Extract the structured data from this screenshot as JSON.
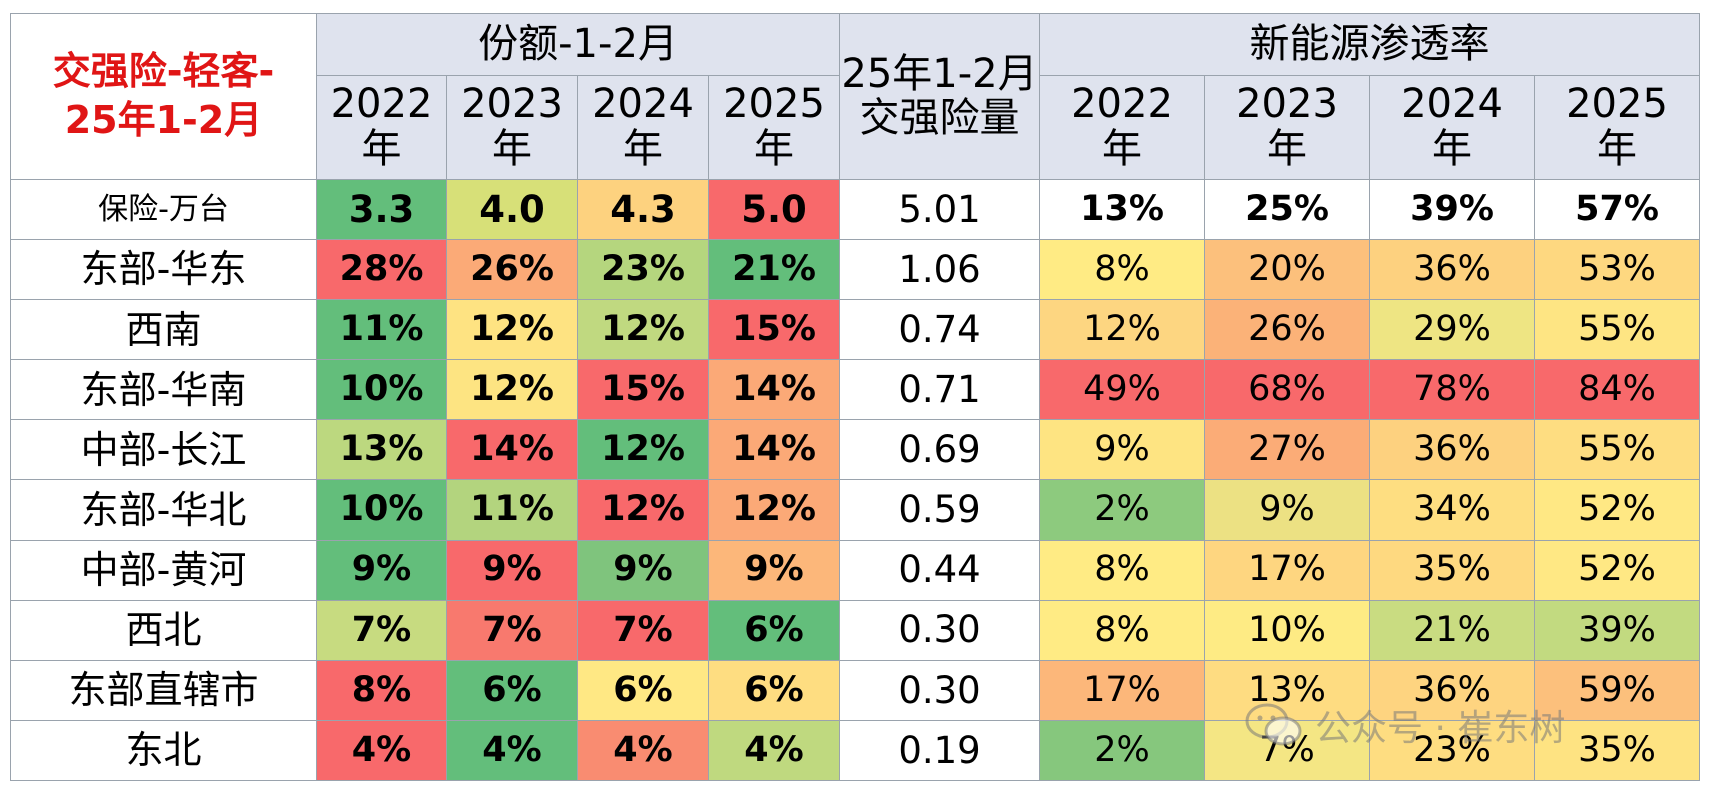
{
  "chart_data": {
    "type": "table",
    "title": "交强险-轻客-25年1-2月",
    "title_lines": [
      "交强险-轻客-",
      "25年1-2月"
    ],
    "groups": {
      "share": "份额-1-2月",
      "volume": [
        "25年1-2月",
        "交强险量"
      ],
      "penetration": "新能源渗透率"
    },
    "years": [
      {
        "num": "2022",
        "unit": "年"
      },
      {
        "num": "2023",
        "unit": "年"
      },
      {
        "num": "2024",
        "unit": "年"
      },
      {
        "num": "2025",
        "unit": "年"
      }
    ],
    "total_row": {
      "label": "保险-万台",
      "share": [
        "3.3",
        "4.0",
        "4.3",
        "5.0"
      ],
      "share_colors": [
        "#63be7b",
        "#d7e078",
        "#fdd27f",
        "#f8696b"
      ],
      "volume": "5.01",
      "penetration": [
        "13%",
        "25%",
        "39%",
        "57%"
      ]
    },
    "rows": [
      {
        "label": "东部-华东",
        "share": [
          "28%",
          "26%",
          "23%",
          "21%"
        ],
        "share_colors": [
          "#f8696b",
          "#fbaa77",
          "#b5d67e",
          "#63be7b"
        ],
        "volume": "1.06",
        "penetration": [
          "8%",
          "20%",
          "36%",
          "53%"
        ],
        "pen_colors": [
          "#ffeb84",
          "#fcc07c",
          "#fdd17f",
          "#fed880"
        ]
      },
      {
        "label": "西南",
        "share": [
          "11%",
          "12%",
          "12%",
          "15%"
        ],
        "share_colors": [
          "#63be7b",
          "#fee382",
          "#c0d980",
          "#f8696b"
        ],
        "volume": "0.74",
        "penetration": [
          "12%",
          "26%",
          "29%",
          "55%"
        ],
        "pen_colors": [
          "#fdd681",
          "#fbb278",
          "#eee583",
          "#fee583"
        ]
      },
      {
        "label": "东部-华南",
        "share": [
          "10%",
          "12%",
          "15%",
          "14%"
        ],
        "share_colors": [
          "#63be7b",
          "#fde482",
          "#f8696b",
          "#fba977"
        ],
        "volume": "0.71",
        "penetration": [
          "49%",
          "68%",
          "78%",
          "84%"
        ],
        "pen_colors": [
          "#f8696b",
          "#f8696b",
          "#f8696b",
          "#f8696b"
        ]
      },
      {
        "label": "中部-长江",
        "share": [
          "13%",
          "14%",
          "12%",
          "14%"
        ],
        "share_colors": [
          "#bcd87f",
          "#f8696b",
          "#63be7b",
          "#fba977"
        ],
        "volume": "0.69",
        "penetration": [
          "9%",
          "27%",
          "36%",
          "55%"
        ],
        "pen_colors": [
          "#fee482",
          "#fbac77",
          "#fdd17f",
          "#fedd81"
        ]
      },
      {
        "label": "东部-华北",
        "share": [
          "10%",
          "11%",
          "12%",
          "12%"
        ],
        "share_colors": [
          "#63be7b",
          "#b3d47e",
          "#f8696b",
          "#fba977"
        ],
        "volume": "0.59",
        "penetration": [
          "2%",
          "9%",
          "34%",
          "52%"
        ],
        "pen_colors": [
          "#8dca7e",
          "#ece183",
          "#fede81",
          "#ffe884"
        ]
      },
      {
        "label": "中部-黄河",
        "share": [
          "9%",
          "9%",
          "9%",
          "9%"
        ],
        "share_colors": [
          "#63be7b",
          "#f8696b",
          "#7fc47d",
          "#fcb77a"
        ],
        "volume": "0.44",
        "penetration": [
          "8%",
          "17%",
          "35%",
          "52%"
        ],
        "pen_colors": [
          "#ffeb84",
          "#fed680",
          "#fed980",
          "#ffe884"
        ]
      },
      {
        "label": "西北",
        "share": [
          "7%",
          "7%",
          "7%",
          "6%"
        ],
        "share_colors": [
          "#c7db80",
          "#f8796e",
          "#f8696b",
          "#63be7b"
        ],
        "volume": "0.30",
        "penetration": [
          "8%",
          "10%",
          "21%",
          "39%"
        ],
        "pen_colors": [
          "#ffeb84",
          "#feeb84",
          "#c9dc81",
          "#c2da80"
        ]
      },
      {
        "label": "东部直辖市",
        "share": [
          "8%",
          "6%",
          "6%",
          "6%"
        ],
        "share_colors": [
          "#f8696b",
          "#63be7b",
          "#ffe884",
          "#fedd81"
        ],
        "volume": "0.30",
        "penetration": [
          "17%",
          "13%",
          "36%",
          "59%"
        ],
        "pen_colors": [
          "#fcb77a",
          "#fedc81",
          "#fed480",
          "#fcc07c"
        ]
      },
      {
        "label": "东北",
        "share": [
          "4%",
          "4%",
          "4%",
          "4%"
        ],
        "share_colors": [
          "#f8696b",
          "#63be7b",
          "#f98c71",
          "#bfd97f"
        ],
        "volume": "0.19",
        "penetration": [
          "2%",
          "7%",
          "23%",
          "35%"
        ],
        "pen_colors": [
          "#86c77d",
          "#f4e684",
          "#fedd81",
          "#fee382"
        ]
      }
    ]
  },
  "watermark": {
    "text": "公众号 · 崔东树",
    "icon": "wechat-icon"
  }
}
